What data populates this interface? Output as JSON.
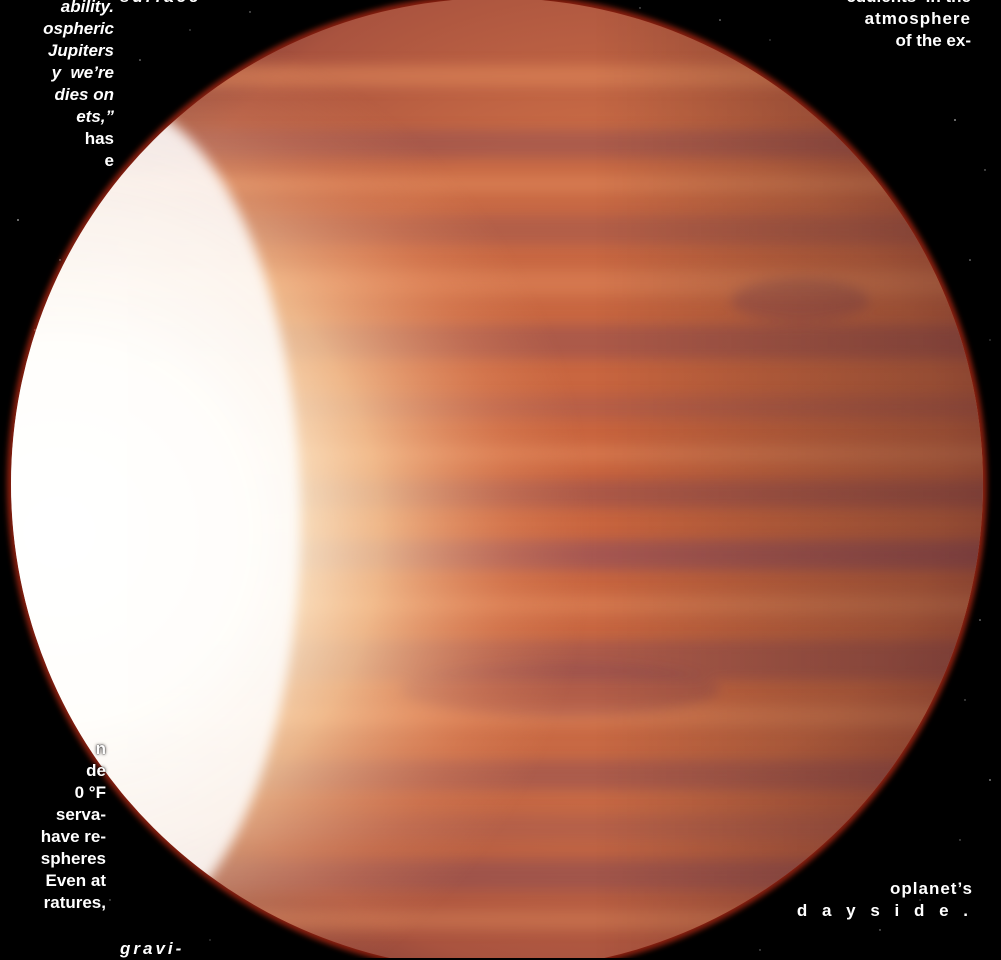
{
  "image": {
    "subject-icon": "gas-giant-exoplanet",
    "background_color": "#000000",
    "planet_colors": {
      "base": "#c86a45",
      "band_dark": "#8a4a52",
      "band_light": "#e58e5e",
      "highlight": "#ffffff",
      "rim": "#ff3a1a"
    }
  },
  "text": {
    "left_top": [
      "ability.",
      "ospheric",
      "Jupiters",
      "y  we’re",
      "dies on",
      "ets,”",
      "has",
      "e"
    ],
    "left_bottom": [
      "n",
      "de",
      "0 °F",
      "serva-",
      "have re-",
      "spheres",
      "Even at",
      "ratures,"
    ],
    "top_center": "surface",
    "bottom_mid": "gravi-",
    "right_top": [
      "cdulents  in the",
      "atmosphere",
      "of the ex-"
    ],
    "right_bottom": [
      "oplanet’s",
      "d a y s i d e ."
    ]
  }
}
